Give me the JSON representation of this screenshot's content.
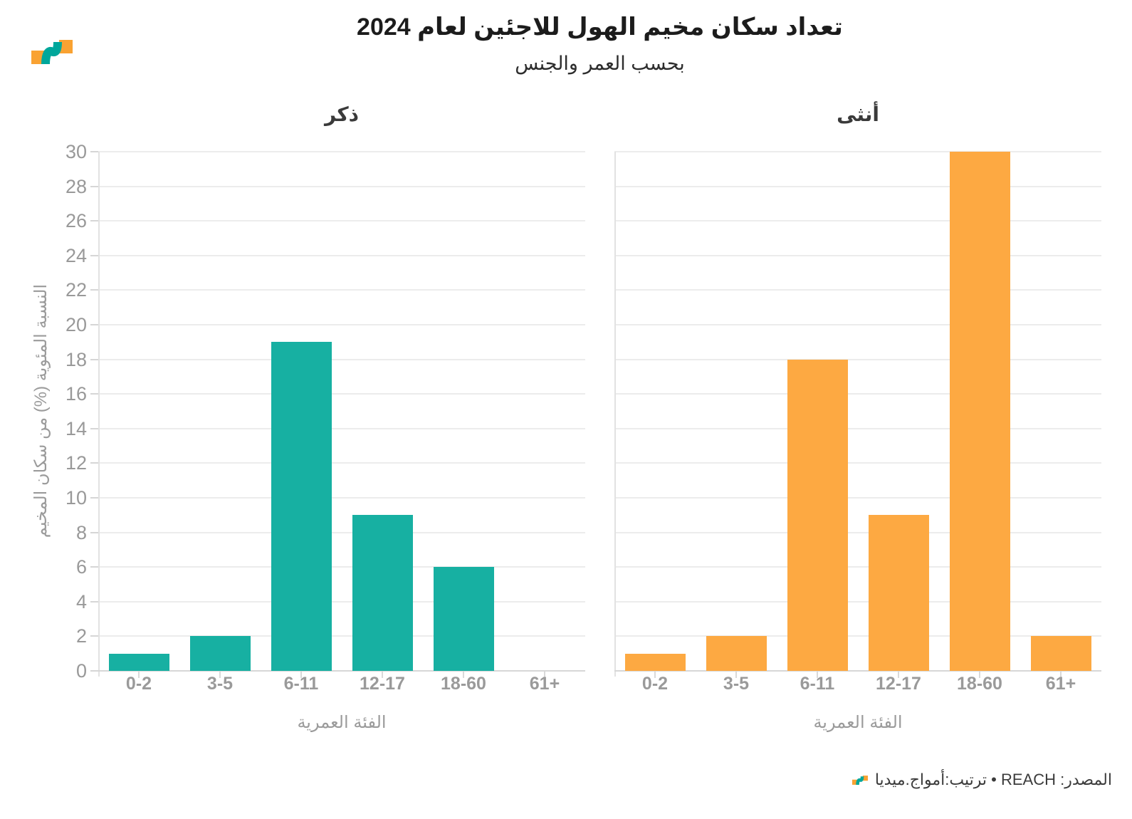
{
  "header": {
    "title": "تعداد سكان مخيم الهول للاجئين لعام 2024",
    "subtitle": "بحسب العمر والجنس",
    "logo": "amwaj-media-logo"
  },
  "footer": {
    "source_text": "المصدر: REACH • ترتيب:أمواج.ميديا",
    "logo": "amwaj-media-mini-logo"
  },
  "chart_data": {
    "type": "bar",
    "facets": true,
    "categories": [
      "0-2",
      "3-5",
      "6-11",
      "12-17",
      "18-60",
      "61+"
    ],
    "series": [
      {
        "name": "ذكر",
        "color": "#17b0a2",
        "values": [
          1,
          2,
          19,
          9,
          6,
          0
        ]
      },
      {
        "name": "أنثى",
        "color": "#fda942",
        "values": [
          1,
          2,
          18,
          9,
          30,
          2
        ]
      }
    ],
    "title": "تعداد سكان مخيم الهول للاجئين لعام 2024",
    "subtitle": "بحسب العمر والجنس",
    "xlabel": "الفئة العمرية",
    "ylabel": "النسبة المئوية (%) من سكان المخيم",
    "ylim": [
      0,
      30
    ],
    "yticks": [
      0,
      2,
      4,
      6,
      8,
      10,
      12,
      14,
      16,
      18,
      20,
      22,
      24,
      26,
      28,
      30
    ],
    "grid": true,
    "legend_position": "none"
  },
  "colors": {
    "male_bar": "#17b0a2",
    "female_bar": "#fda942",
    "gridline": "#ececec",
    "axis_line": "#d7d7d7",
    "tick_label": "#999999",
    "logo_orange": "#f9a232",
    "logo_teal": "#00a79b"
  }
}
